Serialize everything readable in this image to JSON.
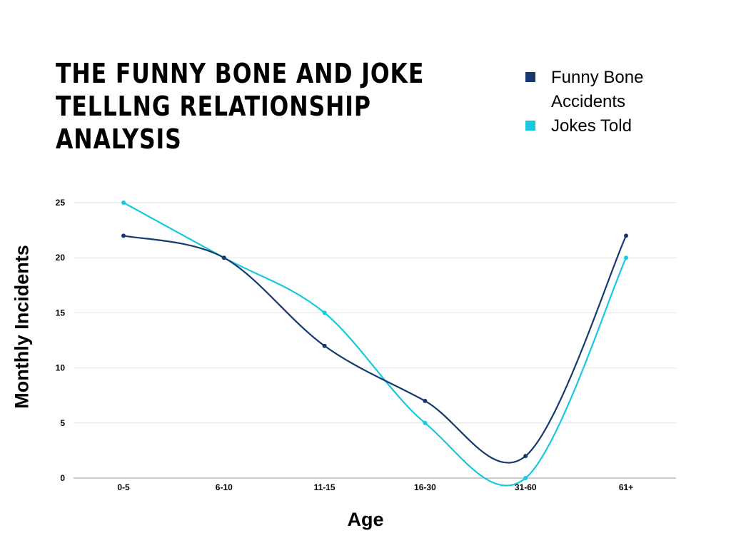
{
  "chart_data": {
    "type": "line",
    "title": "THE FUNNY BONE AND JOKE TELLLNG RELATIONSHIP ANALYSIS",
    "xlabel": "Age",
    "ylabel": "Monthly Incidents",
    "categories": [
      "0-5",
      "6-10",
      "11-15",
      "16-30",
      "31-60",
      "61+"
    ],
    "ylim": [
      0,
      25
    ],
    "yticks": [
      0,
      5,
      10,
      15,
      20,
      25
    ],
    "grid": true,
    "legend_position": "top-right",
    "series": [
      {
        "name": "Funny Bone Accidents",
        "values": [
          22,
          20,
          12,
          7,
          2,
          22
        ],
        "color": "#163A70"
      },
      {
        "name": "Jokes Told",
        "values": [
          25,
          20,
          15,
          5,
          0,
          20
        ],
        "color": "#17C9DF"
      }
    ]
  }
}
